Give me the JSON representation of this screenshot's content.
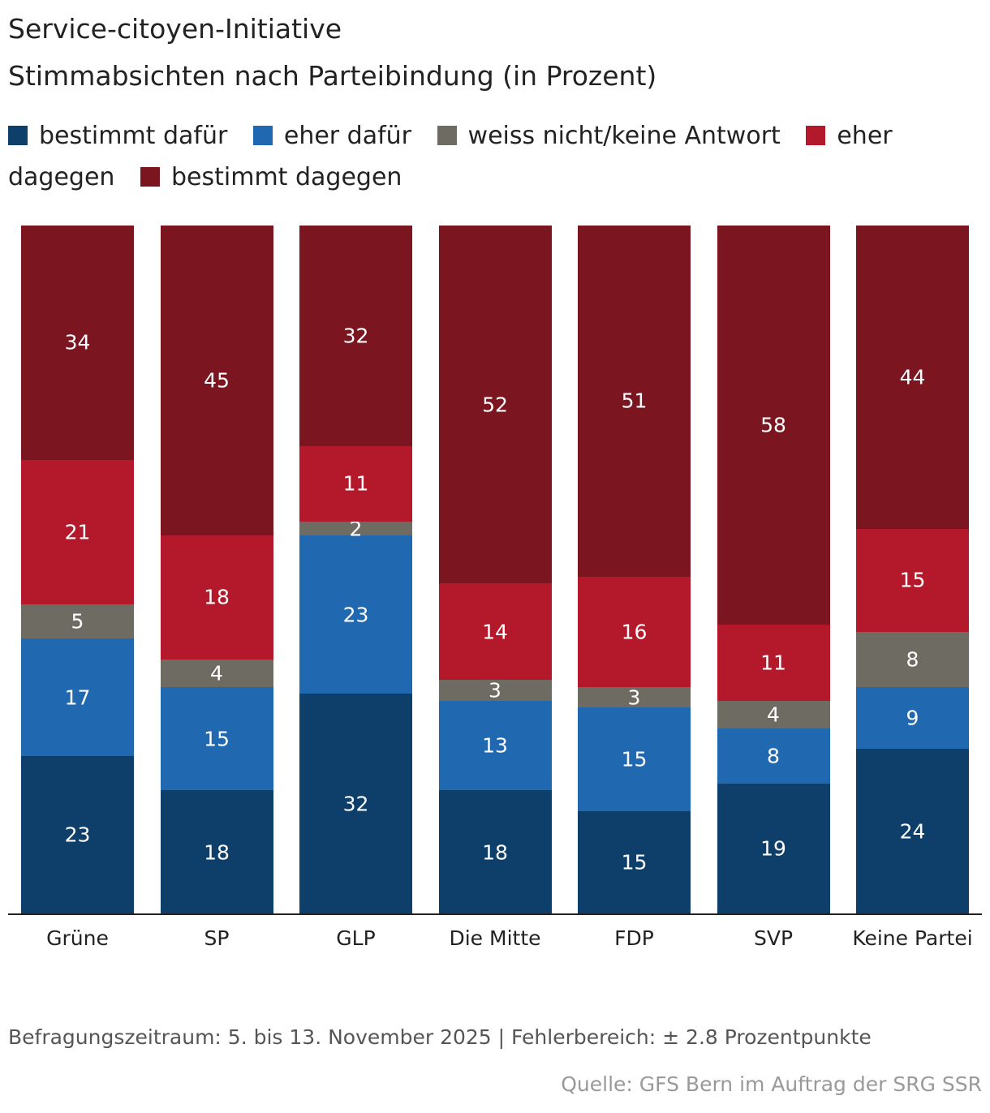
{
  "chart_data": {
    "type": "stacked_bar",
    "title": "Service-citoyen-Initiative",
    "subtitle": "Stimmabsichten nach Parteibindung (in Prozent)",
    "categories": [
      "Grüne",
      "SP",
      "GLP",
      "Die Mitte",
      "FDP",
      "SVP",
      "Keine Partei"
    ],
    "series": [
      {
        "name": "bestimmt dafür",
        "color": "#0e3f6b",
        "values": [
          23,
          18,
          32,
          18,
          15,
          19,
          24
        ]
      },
      {
        "name": "eher dafür",
        "color": "#2068b0",
        "values": [
          17,
          15,
          23,
          13,
          15,
          8,
          9
        ]
      },
      {
        "name": "weiss nicht/keine Antwort",
        "color": "#6e6b63",
        "values": [
          5,
          4,
          2,
          3,
          3,
          4,
          8
        ]
      },
      {
        "name": "eher dagegen",
        "color": "#b3182b",
        "values": [
          21,
          18,
          11,
          14,
          16,
          11,
          15
        ]
      },
      {
        "name": "bestimmt dagegen",
        "color": "#7b1520",
        "values": [
          34,
          45,
          32,
          52,
          51,
          58,
          44
        ]
      }
    ],
    "ylim": [
      0,
      100
    ],
    "note": "Befragungszeitraum: 5. bis 13. November 2025 | Fehlerbereich: ± 2.8 Prozentpunkte",
    "source": "Quelle: GFS Bern im Auftrag der SRG SSR"
  }
}
